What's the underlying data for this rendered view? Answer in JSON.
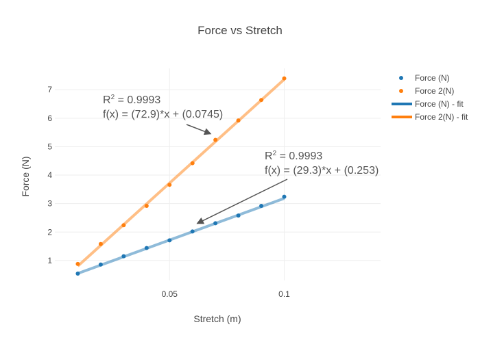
{
  "chart_data": {
    "type": "scatter",
    "title": "Force vs Stretch",
    "xlabel": "Stretch (m)",
    "ylabel": "Force (N)",
    "xlim": [
      0.0,
      0.142
    ],
    "ylim": [
      0.3,
      7.75
    ],
    "x_ticks": [
      0.05,
      0.1
    ],
    "x_tick_labels": [
      "0.05",
      "0.1"
    ],
    "y_ticks": [
      1,
      2,
      3,
      4,
      5,
      6,
      7
    ],
    "y_tick_labels": [
      "1",
      "2",
      "3",
      "4",
      "5",
      "6",
      "7"
    ],
    "grid": true,
    "legend_position": "top-right",
    "series": [
      {
        "name": "Force (N)",
        "kind": "markers",
        "color": "#1f77b4",
        "x": [
          0.01,
          0.02,
          0.03,
          0.04,
          0.05,
          0.06,
          0.07,
          0.08,
          0.09,
          0.1
        ],
        "y": [
          0.54,
          0.86,
          1.15,
          1.44,
          1.71,
          2.02,
          2.31,
          2.58,
          2.92,
          3.24
        ]
      },
      {
        "name": "Force 2(N)",
        "kind": "markers",
        "color": "#ff7f0e",
        "x": [
          0.01,
          0.02,
          0.03,
          0.04,
          0.05,
          0.06,
          0.07,
          0.08,
          0.09,
          0.1
        ],
        "y": [
          0.88,
          1.58,
          2.24,
          2.92,
          3.66,
          4.42,
          5.24,
          5.92,
          6.64,
          7.4
        ]
      },
      {
        "name": "Force (N) - fit",
        "kind": "line",
        "color": "#1f77b4",
        "slope": 29.3,
        "intercept": 0.253,
        "x_range": [
          0.01,
          0.1
        ]
      },
      {
        "name": "Force 2(N) - fit",
        "kind": "line",
        "color": "#ff7f0e",
        "slope": 72.9,
        "intercept": 0.0745,
        "x_range": [
          0.01,
          0.1
        ]
      }
    ],
    "annotations": [
      {
        "r2_prefix": "R",
        "r2_sup": "2",
        "r2_value": " = 0.9993",
        "formula": "f(x) = (72.9)*x + (0.0745)",
        "arrow_target": [
          0.068,
          5.45
        ]
      },
      {
        "r2_prefix": "R",
        "r2_sup": "2",
        "r2_value": " = 0.9993",
        "formula": "f(x) = (29.3)*x + (0.253)",
        "arrow_target": [
          0.062,
          2.3
        ]
      }
    ]
  }
}
